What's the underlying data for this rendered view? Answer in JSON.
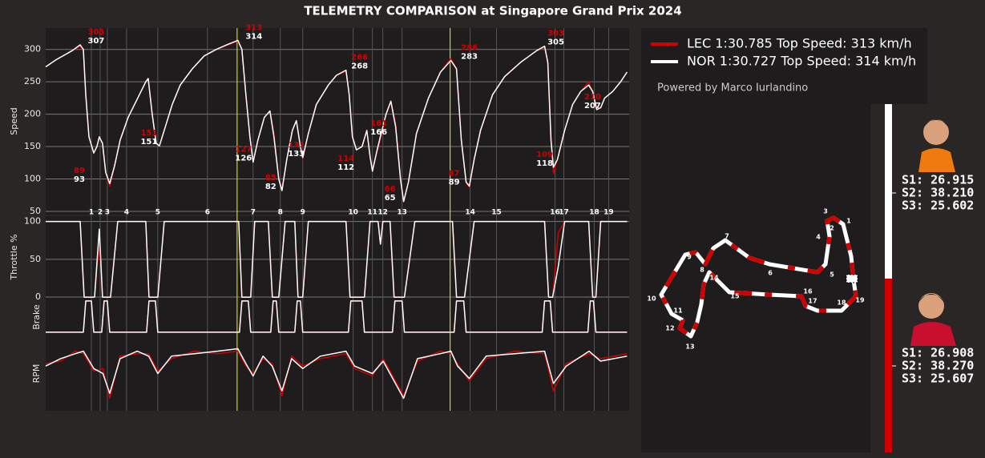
{
  "title": "TELEMETRY COMPARISON at Singapore Grand Prix 2024",
  "credit": "Powered by Marco Iurlandino",
  "chart_data": [
    {
      "type": "line",
      "ylabel": "Speed",
      "xlim": [
        0,
        5100
      ],
      "ylim": [
        45,
        333
      ],
      "yticks": [
        50,
        100,
        150,
        200,
        250,
        300
      ],
      "grid": true,
      "x": [
        0,
        91,
        231,
        301,
        329,
        350,
        378,
        420,
        448,
        469,
        497,
        525,
        560,
        602,
        651,
        721,
        791,
        875,
        896,
        931,
        966,
        994,
        1036,
        1106,
        1176,
        1281,
        1386,
        1491,
        1596,
        1680,
        1715,
        1750,
        1785,
        1813,
        1855,
        1911,
        1960,
        1995,
        2037,
        2065,
        2107,
        2156,
        2191,
        2226,
        2247,
        2296,
        2366,
        2471,
        2541,
        2625,
        2653,
        2681,
        2716,
        2765,
        2807,
        2835,
        2856,
        2891,
        2926,
        2975,
        3017,
        3059,
        3101,
        3129,
        3171,
        3241,
        3346,
        3451,
        3542,
        3591,
        3633,
        3675,
        3703,
        3745,
        3801,
        3906,
        4011,
        4151,
        4291,
        4361,
        4389,
        4417,
        4438,
        4473,
        4536,
        4606,
        4676,
        4746,
        4781,
        4816,
        4851,
        4886,
        4956,
        5026,
        5082
      ],
      "series": [
        {
          "name": "LEC 1:30.785  Top Speed: 313 km/h",
          "color": "#d10000",
          "values": [
            273,
            284,
            298,
            305,
            298,
            230,
            165,
            140,
            150,
            165,
            155,
            110,
            89,
            120,
            160,
            195,
            220,
            250,
            255,
            200,
            155,
            151,
            175,
            215,
            245,
            270,
            290,
            300,
            307,
            313,
            300,
            230,
            165,
            127,
            160,
            195,
            205,
            170,
            100,
            85,
            130,
            175,
            190,
            150,
            131,
            170,
            215,
            245,
            260,
            266,
            230,
            165,
            145,
            150,
            175,
            135,
            114,
            140,
            161,
            200,
            220,
            185,
            100,
            66,
            95,
            170,
            225,
            265,
            286,
            270,
            160,
            95,
            87,
            130,
            175,
            230,
            258,
            280,
            298,
            303,
            280,
            160,
            109,
            130,
            175,
            215,
            235,
            250,
            235,
            210,
            210,
            225,
            235,
            250,
            265
          ]
        },
        {
          "name": "NOR 1:30.727  Top Speed: 314 km/h",
          "color": "#ffffff",
          "values": [
            273,
            284,
            298,
            307,
            300,
            230,
            165,
            140,
            150,
            165,
            155,
            110,
            93,
            120,
            160,
            195,
            220,
            250,
            255,
            200,
            155,
            151,
            175,
            215,
            245,
            270,
            290,
            300,
            308,
            314,
            300,
            230,
            165,
            126,
            160,
            195,
            205,
            165,
            100,
            82,
            130,
            175,
            190,
            150,
            133,
            170,
            215,
            245,
            260,
            268,
            230,
            165,
            145,
            150,
            175,
            135,
            112,
            140,
            166,
            200,
            220,
            180,
            100,
            65,
            95,
            170,
            225,
            265,
            283,
            270,
            160,
            95,
            89,
            130,
            175,
            230,
            258,
            280,
            298,
            305,
            280,
            160,
            118,
            130,
            175,
            215,
            235,
            245,
            235,
            207,
            210,
            225,
            235,
            250,
            265
          ]
        }
      ],
      "speed_labels": {
        "x": [
          294,
          441,
          903,
          1729,
          1820,
          1967,
          2191,
          2625,
          2744,
          2912,
          3010,
          3570,
          3703,
          4361,
          4459,
          4781
        ],
        "lec": [
          89,
          305,
          151,
          127,
          313,
          85,
          131,
          114,
          266,
          161,
          66,
          87,
          286,
          109,
          303,
          210
        ],
        "nor": [
          93,
          307,
          151,
          126,
          314,
          82,
          133,
          112,
          268,
          166,
          65,
          89,
          283,
          118,
          305,
          207
        ]
      },
      "corners": {
        "labels": [
          "1",
          "2",
          "3",
          "4",
          "5",
          "6",
          "7",
          "8",
          "9",
          "10",
          "11",
          "12",
          "13",
          "14",
          "15",
          "16",
          "17",
          "18",
          "19"
        ],
        "x": [
          399,
          476,
          539,
          707,
          980,
          1414,
          1813,
          2051,
          2247,
          2688,
          2856,
          2947,
          3115,
          3710,
          3941,
          4452,
          4529,
          4795,
          4921
        ]
      },
      "highlight_x": [
        1673,
        3535
      ],
      "highlight_color": "#d4d400"
    },
    {
      "type": "line",
      "ylabel": "Throttle %",
      "xlim": [
        0,
        5100
      ],
      "ylim": [
        -1,
        107
      ],
      "yticks": [
        0,
        50,
        100
      ],
      "grid": true,
      "x": [
        0,
        301,
        336,
        427,
        469,
        497,
        567,
        630,
        875,
        903,
        980,
        1036,
        1687,
        1715,
        1792,
        1827,
        1946,
        1981,
        2037,
        2093,
        2177,
        2205,
        2247,
        2296,
        2625,
        2660,
        2786,
        2835,
        2905,
        2926,
        2947,
        3010,
        3045,
        3136,
        3227,
        3556,
        3591,
        3661,
        3745,
        4361,
        4396,
        4431,
        4480,
        4536,
        4746,
        4781,
        4809,
        4851,
        5082
      ],
      "series": [
        {
          "color": "#d10000",
          "values": [
            100,
            100,
            0,
            0,
            75,
            0,
            0,
            100,
            100,
            0,
            0,
            100,
            100,
            0,
            0,
            100,
            100,
            0,
            0,
            100,
            100,
            0,
            0,
            100,
            100,
            0,
            0,
            100,
            100,
            70,
            100,
            100,
            0,
            0,
            100,
            100,
            0,
            0,
            100,
            100,
            0,
            0,
            85,
            100,
            100,
            0,
            0,
            100,
            100
          ]
        },
        {
          "color": "#ffffff",
          "values": [
            100,
            100,
            0,
            0,
            90,
            0,
            0,
            100,
            100,
            0,
            0,
            100,
            100,
            0,
            0,
            100,
            100,
            0,
            0,
            100,
            100,
            0,
            0,
            100,
            100,
            0,
            0,
            100,
            100,
            70,
            100,
            100,
            0,
            0,
            100,
            100,
            0,
            0,
            100,
            100,
            0,
            0,
            40,
            100,
            100,
            0,
            0,
            100,
            100
          ]
        }
      ]
    },
    {
      "type": "line",
      "ylabel": "Brake",
      "xlim": [
        0,
        5100
      ],
      "ylim": [
        -0.13,
        1.1
      ],
      "x": [
        0,
        329,
        350,
        399,
        420,
        490,
        511,
        539,
        560,
        882,
        903,
        959,
        980,
        1694,
        1715,
        1771,
        1792,
        1967,
        1988,
        2016,
        2037,
        2177,
        2198,
        2226,
        2247,
        2646,
        2667,
        2765,
        2786,
        3031,
        3052,
        3115,
        3136,
        3570,
        3591,
        3654,
        3675,
        4340,
        4361,
        4410,
        4431,
        4739,
        4760,
        4788,
        4809,
        5082
      ],
      "series": [
        {
          "color": "#d10000",
          "values": [
            0,
            0,
            1,
            1,
            0,
            0,
            1,
            1,
            0,
            0,
            1,
            1,
            0,
            0,
            1,
            1,
            0,
            0,
            1,
            1,
            0,
            0,
            1,
            1,
            0,
            0,
            1,
            1,
            0,
            0,
            1,
            1,
            0,
            0,
            1,
            1,
            0,
            0,
            1,
            1,
            0,
            0,
            1,
            1,
            0,
            0
          ]
        },
        {
          "color": "#ffffff",
          "values": [
            0,
            0,
            1,
            1,
            0,
            0,
            1,
            1,
            0,
            0,
            1,
            1,
            0,
            0,
            1,
            1,
            0,
            0,
            1,
            1,
            0,
            0,
            1,
            1,
            0,
            0,
            1,
            1,
            0,
            0,
            1,
            1,
            0,
            0,
            1,
            1,
            0,
            0,
            1,
            1,
            0,
            0,
            1,
            1,
            0,
            0
          ]
        }
      ]
    },
    {
      "type": "line",
      "ylabel": "RPM",
      "xlim": [
        0,
        5100
      ],
      "ylim": [
        9500,
        12500
      ],
      "x": [
        0,
        130,
        260,
        330,
        420,
        500,
        560,
        650,
        800,
        900,
        980,
        1100,
        1300,
        1500,
        1680,
        1750,
        1813,
        1900,
        1980,
        2065,
        2150,
        2247,
        2400,
        2625,
        2700,
        2856,
        2950,
        3129,
        3250,
        3450,
        3542,
        3600,
        3703,
        3850,
        4100,
        4361,
        4438,
        4550,
        4750,
        4850,
        5082
      ],
      "series": [
        {
          "color": "#d10000",
          "values": [
            11400,
            11500,
            11900,
            11800,
            11100,
            11200,
            10000,
            11700,
            11800,
            11800,
            11100,
            11600,
            11900,
            11800,
            11900,
            11300,
            11000,
            11600,
            11400,
            10100,
            11700,
            11300,
            11600,
            11800,
            11200,
            10900,
            11600,
            10100,
            11500,
            11900,
            11800,
            11400,
            10700,
            11600,
            11900,
            11800,
            10300,
            11400,
            11800,
            11600,
            11800
          ]
        },
        {
          "color": "#ffffff",
          "values": [
            11300,
            11600,
            11800,
            11900,
            11200,
            11000,
            10200,
            11600,
            11900,
            11700,
            11000,
            11700,
            11800,
            11900,
            12000,
            11400,
            10900,
            11700,
            11300,
            10300,
            11600,
            11200,
            11700,
            11900,
            11300,
            11000,
            11500,
            10000,
            11600,
            11800,
            11900,
            11300,
            10800,
            11700,
            11800,
            11900,
            10600,
            11300,
            11900,
            11500,
            11700
          ]
        }
      ]
    }
  ],
  "track_map": {
    "corners": [
      "1",
      "2",
      "3",
      "4",
      "5",
      "6",
      "7",
      "8",
      "9",
      "10",
      "11",
      "12",
      "13",
      "14",
      "15",
      "16",
      "17",
      "18",
      "19"
    ]
  },
  "sectors": [
    [
      "S1: 26.915",
      "S2: 38.210",
      "S3: 25.602"
    ],
    [
      "S1: 26.908",
      "S2: 38.270",
      "S3: 25.607"
    ]
  ]
}
